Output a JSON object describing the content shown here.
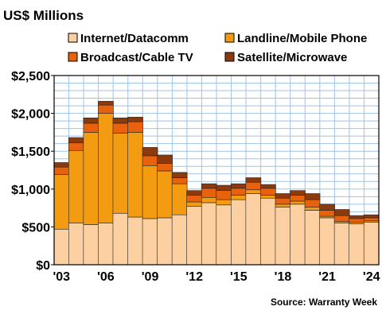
{
  "chart_data": {
    "type": "bar",
    "stacked": true,
    "title": "US$ Millions",
    "source": "Source: Warranty Week",
    "years": [
      2003,
      2004,
      2005,
      2006,
      2007,
      2008,
      2009,
      2010,
      2011,
      2012,
      2013,
      2014,
      2015,
      2016,
      2017,
      2018,
      2019,
      2020,
      2021,
      2022,
      2023,
      2024
    ],
    "x_tick_labels": [
      {
        "year": 2003,
        "label": "'03"
      },
      {
        "year": 2006,
        "label": "'06"
      },
      {
        "year": 2009,
        "label": "'09"
      },
      {
        "year": 2012,
        "label": "'12"
      },
      {
        "year": 2015,
        "label": "'15"
      },
      {
        "year": 2018,
        "label": "'18"
      },
      {
        "year": 2021,
        "label": "'21"
      },
      {
        "year": 2024,
        "label": "'24"
      }
    ],
    "y_ticks": [
      {
        "value": 0,
        "label": "$0"
      },
      {
        "value": 500,
        "label": "$500"
      },
      {
        "value": 1000,
        "label": "$1,000"
      },
      {
        "value": 1500,
        "label": "$1,500"
      },
      {
        "value": 2000,
        "label": "$2,000"
      },
      {
        "value": 2500,
        "label": "$2,500"
      }
    ],
    "ylim": [
      0,
      2500
    ],
    "grid": true,
    "legend_position": "top",
    "series": [
      {
        "name": "Internet/Datacomm",
        "color": "#fdd0a2",
        "values": [
          470,
          550,
          530,
          550,
          680,
          630,
          610,
          620,
          660,
          770,
          820,
          790,
          860,
          940,
          880,
          760,
          800,
          720,
          620,
          550,
          540,
          560
        ]
      },
      {
        "name": "Landline/Mobile Phone",
        "color": "#f39c12",
        "values": [
          720,
          960,
          1220,
          1450,
          1060,
          1120,
          700,
          620,
          410,
          60,
          70,
          70,
          60,
          50,
          40,
          40,
          40,
          40,
          20,
          20,
          20,
          20
        ]
      },
      {
        "name": "Broadcast/Cable TV",
        "color": "#e8620e",
        "values": [
          100,
          100,
          120,
          110,
          130,
          140,
          130,
          100,
          80,
          90,
          120,
          120,
          90,
          100,
          90,
          80,
          80,
          100,
          80,
          80,
          50,
          40
        ]
      },
      {
        "name": "Satellite/Microwave",
        "color": "#8b3a0e",
        "values": [
          60,
          70,
          70,
          50,
          70,
          60,
          110,
          110,
          70,
          60,
          60,
          70,
          60,
          60,
          50,
          60,
          60,
          80,
          80,
          80,
          40,
          40
        ]
      }
    ]
  }
}
